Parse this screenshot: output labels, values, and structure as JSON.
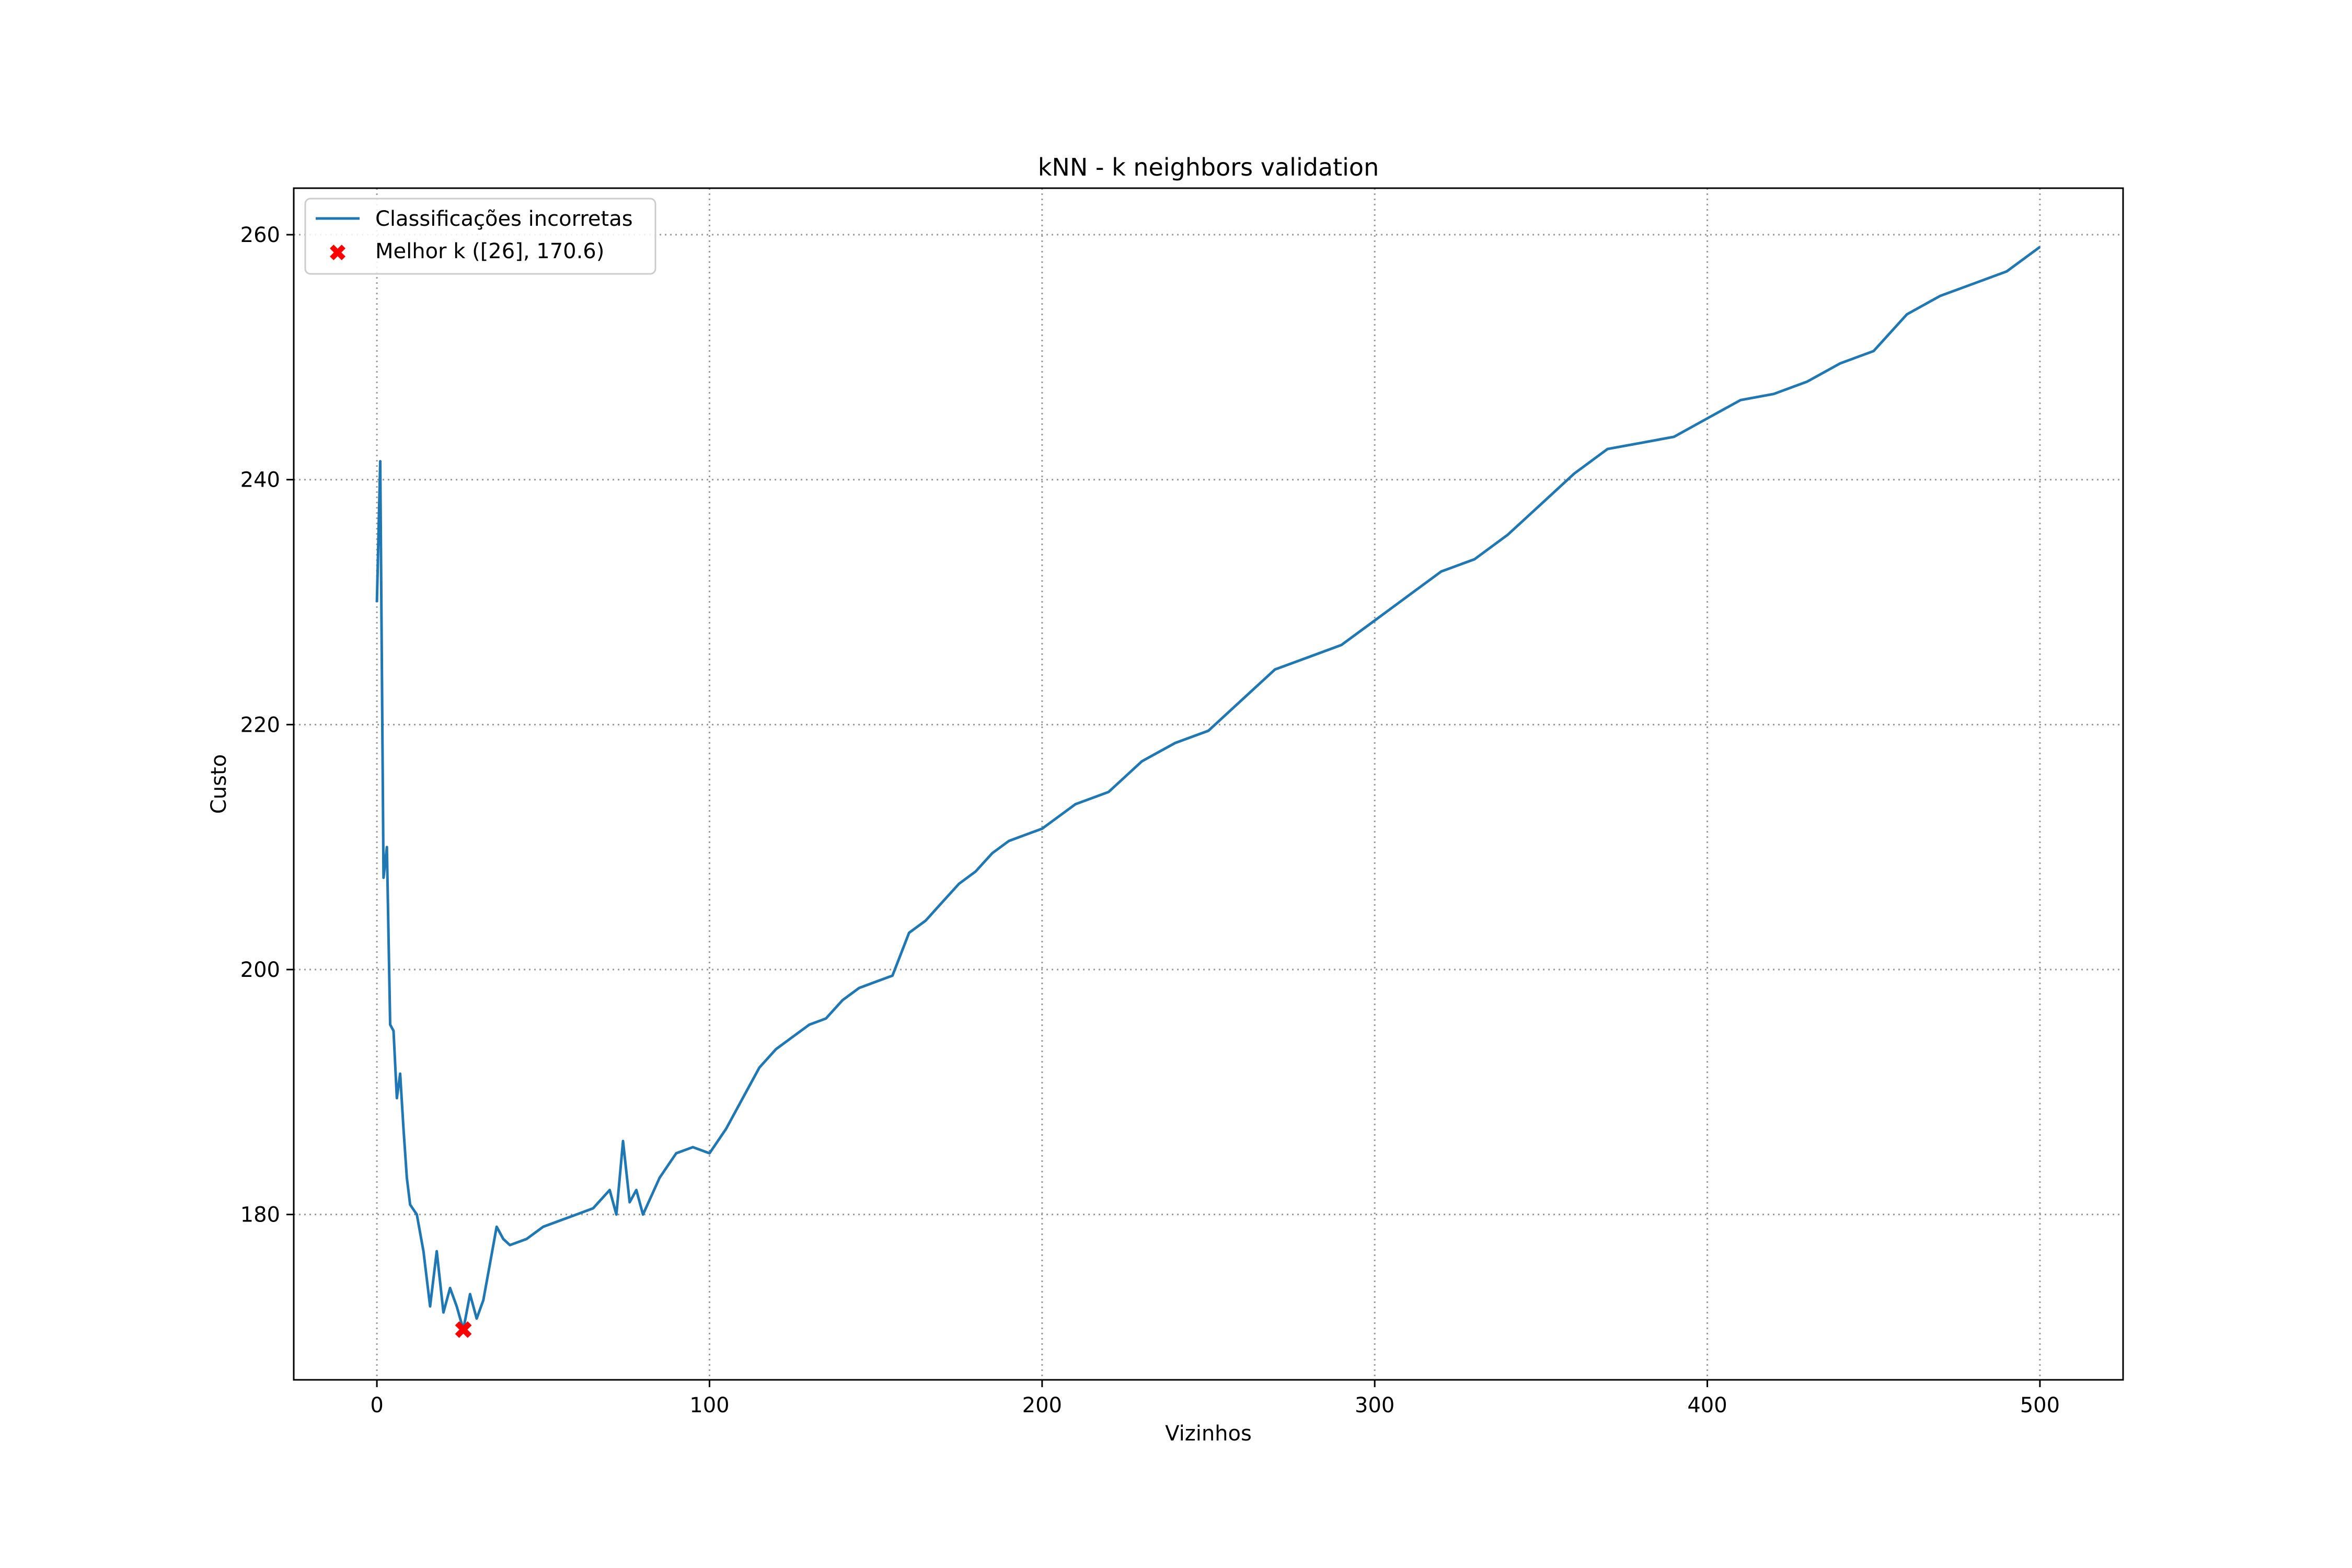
{
  "chart_data": {
    "type": "line",
    "title": "kNN - k neighbors validation",
    "xlabel": "Vizinhos",
    "ylabel": "Custo",
    "xlim": [
      -25,
      525
    ],
    "ylim": [
      166.5,
      263.8
    ],
    "xticks": [
      0,
      100,
      200,
      300,
      400,
      500
    ],
    "yticks": [
      180,
      200,
      220,
      240,
      260
    ],
    "grid": true,
    "legend_position": "upper-left",
    "series": [
      {
        "name": "Classificações incorretas",
        "color": "#1f77b4",
        "x": [
          0,
          1,
          2,
          3,
          4,
          5,
          6,
          7,
          8,
          9,
          10,
          12,
          14,
          16,
          18,
          20,
          22,
          24,
          26,
          28,
          30,
          32,
          34,
          36,
          38,
          40,
          45,
          50,
          55,
          60,
          65,
          70,
          72,
          74,
          76,
          78,
          80,
          85,
          90,
          95,
          100,
          105,
          110,
          115,
          120,
          125,
          130,
          135,
          140,
          145,
          150,
          155,
          160,
          165,
          170,
          175,
          180,
          185,
          190,
          195,
          200,
          210,
          220,
          230,
          240,
          250,
          260,
          270,
          280,
          290,
          300,
          310,
          320,
          330,
          340,
          350,
          360,
          370,
          380,
          390,
          400,
          410,
          420,
          430,
          440,
          450,
          460,
          470,
          480,
          490,
          500
        ],
        "values": [
          230,
          241.5,
          207.5,
          210,
          195.5,
          195,
          189.5,
          191.5,
          187,
          183,
          180.8,
          180,
          177,
          172.5,
          177,
          172,
          174,
          172.5,
          170.6,
          173.5,
          171.5,
          173,
          176,
          179,
          178,
          177.5,
          178,
          179,
          179.5,
          180,
          180.5,
          182,
          180,
          186,
          181,
          182,
          180,
          183,
          185,
          185.5,
          185,
          187,
          189.5,
          192,
          193.5,
          194.5,
          195.5,
          196,
          197.5,
          198.5,
          199,
          199.5,
          203,
          204,
          205.5,
          207,
          208,
          209.5,
          210.5,
          211,
          211.5,
          213.5,
          214.5,
          217,
          218.5,
          219.5,
          222,
          224.5,
          225.5,
          226.5,
          228.5,
          230.5,
          232.5,
          233.5,
          235.5,
          238,
          240.5,
          242.5,
          243,
          243.5,
          245,
          246.5,
          247,
          248,
          249.5,
          250.5,
          253.5,
          255,
          256,
          257,
          259
        ]
      }
    ],
    "best": {
      "name": "Melhor k ([26], 170.6)",
      "x": 26,
      "y": 170.6,
      "color": "#ff0000"
    }
  }
}
